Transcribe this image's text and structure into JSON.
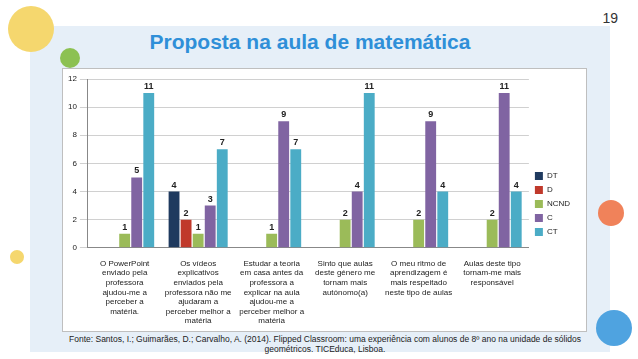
{
  "header": {
    "title": "Proposta na aula de matemática",
    "page": "19"
  },
  "chart_data": {
    "type": "bar",
    "categories": [
      "O PowerPoint enviado pela professora ajudou-me a perceber a matéria.",
      "Os vídeos explicativos enviados pela professora não me ajudaram a perceber melhor a matéria",
      "Estudar a teoria em casa antes da professora a explicar na aula ajudou-me a perceber melhor a matéria",
      "Sinto que aulas deste género me tornam mais autónomo(a)",
      "O meu ritmo de aprendizagem é mais respeitado neste tipo de aulas",
      "Aulas deste tipo tornam-me mais responsável"
    ],
    "series": [
      {
        "name": "DT",
        "color": "#1f3a5f",
        "values": [
          null,
          4,
          null,
          null,
          null,
          null
        ]
      },
      {
        "name": "D",
        "color": "#c0392b",
        "values": [
          null,
          2,
          null,
          null,
          null,
          null
        ]
      },
      {
        "name": "NCND",
        "color": "#9bbb59",
        "values": [
          1,
          1,
          1,
          2,
          2,
          2
        ]
      },
      {
        "name": "C",
        "color": "#8064a2",
        "values": [
          5,
          3,
          9,
          4,
          9,
          11
        ]
      },
      {
        "name": "CT",
        "color": "#4bacc6",
        "values": [
          11,
          7,
          7,
          11,
          4,
          4
        ]
      }
    ],
    "ylim": [
      0,
      12
    ],
    "yticks": [
      0,
      2,
      4,
      6,
      8,
      10,
      12
    ],
    "grid": true,
    "legend": "right",
    "data_labels": true
  },
  "footer": {
    "source": "Fonte: Santos, I.; Guimarães, D.; Carvalho, A. (2014). Flipped Classroom: uma experiência com alunos de 8º ano na unidade de sólidos geométricos. TICEduca, Lisboa."
  }
}
